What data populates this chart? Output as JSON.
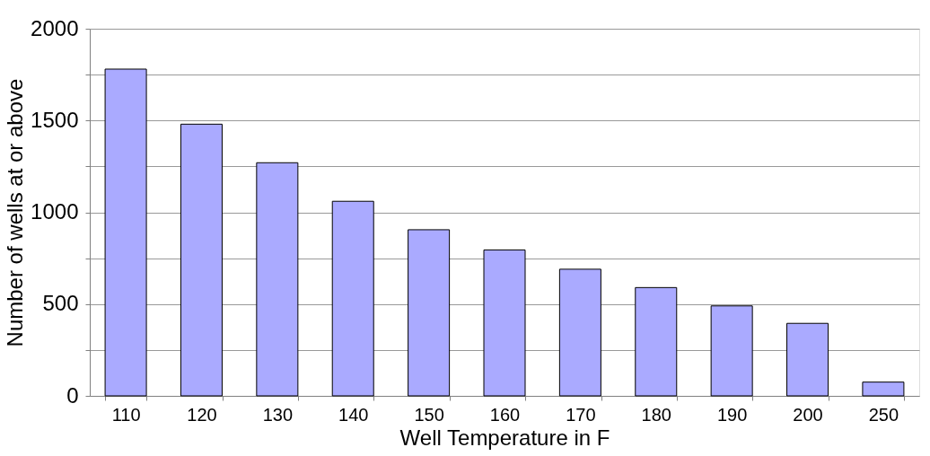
{
  "chart_data": {
    "type": "bar",
    "xlabel": "Well Temperature in F",
    "ylabel": "Number of wells at or above",
    "categories": [
      "110",
      "120",
      "130",
      "140",
      "150",
      "160",
      "170",
      "180",
      "190",
      "200",
      "250"
    ],
    "values": [
      1780,
      1480,
      1270,
      1060,
      905,
      795,
      690,
      590,
      490,
      395,
      75
    ],
    "color": "#aaaaff",
    "ylim": [
      0,
      2000
    ],
    "yticks": [
      0,
      {
        "value": 250,
        "label": null
      },
      500,
      {
        "value": 750,
        "label": null
      },
      1000,
      {
        "value": 1250,
        "label": null
      },
      1500,
      {
        "value": 1750,
        "label": null
      },
      2000
    ],
    "grid": "y"
  }
}
